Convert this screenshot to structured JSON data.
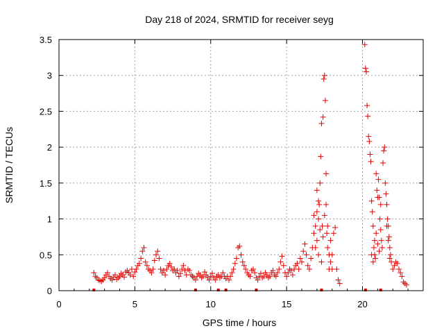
{
  "chart_data": {
    "type": "scatter",
    "title": "Day 218 of 2024, SRMTID for receiver seyg",
    "xlabel": "GPS time / hours",
    "ylabel": "SRMTID / TECUs",
    "xlim": [
      0,
      24
    ],
    "ylim": [
      0,
      3.5
    ],
    "xticks": [
      0,
      5,
      10,
      15,
      20
    ],
    "xtick_labels": [
      "0",
      "5",
      "10",
      "15",
      "20"
    ],
    "yticks": [
      0,
      0.5,
      1,
      1.5,
      2,
      2.5,
      3,
      3.5
    ],
    "ytick_labels": [
      "0",
      "0.5",
      "1",
      "1.5",
      "2",
      "2.5",
      "3",
      "3.5"
    ],
    "grid": true,
    "series_name": "SRMTID",
    "marker": "plus",
    "color": "#e00000",
    "points": [
      [
        2.3,
        0.25
      ],
      [
        2.4,
        0.2
      ],
      [
        2.5,
        0.18
      ],
      [
        2.6,
        0.15
      ],
      [
        2.7,
        0.14
      ],
      [
        2.8,
        0.13
      ],
      [
        2.9,
        0.15
      ],
      [
        3.0,
        0.18
      ],
      [
        3.1,
        0.22
      ],
      [
        3.2,
        0.25
      ],
      [
        3.3,
        0.2
      ],
      [
        3.4,
        0.17
      ],
      [
        3.5,
        0.15
      ],
      [
        3.6,
        0.19
      ],
      [
        3.7,
        0.22
      ],
      [
        3.8,
        0.16
      ],
      [
        3.9,
        0.18
      ],
      [
        4.0,
        0.2
      ],
      [
        4.1,
        0.24
      ],
      [
        4.2,
        0.22
      ],
      [
        4.3,
        0.19
      ],
      [
        4.4,
        0.26
      ],
      [
        4.5,
        0.28
      ],
      [
        4.6,
        0.25
      ],
      [
        4.7,
        0.22
      ],
      [
        4.8,
        0.3
      ],
      [
        4.9,
        0.2
      ],
      [
        5.0,
        0.26
      ],
      [
        5.1,
        0.3
      ],
      [
        5.2,
        0.35
      ],
      [
        5.3,
        0.38
      ],
      [
        5.4,
        0.45
      ],
      [
        5.5,
        0.55
      ],
      [
        5.6,
        0.6
      ],
      [
        5.7,
        0.4
      ],
      [
        5.8,
        0.35
      ],
      [
        5.9,
        0.3
      ],
      [
        6.0,
        0.28
      ],
      [
        6.1,
        0.25
      ],
      [
        6.2,
        0.3
      ],
      [
        6.3,
        0.42
      ],
      [
        6.4,
        0.5
      ],
      [
        6.5,
        0.55
      ],
      [
        6.6,
        0.45
      ],
      [
        6.7,
        0.3
      ],
      [
        6.8,
        0.25
      ],
      [
        6.9,
        0.28
      ],
      [
        7.0,
        0.22
      ],
      [
        7.1,
        0.3
      ],
      [
        7.2,
        0.35
      ],
      [
        7.3,
        0.38
      ],
      [
        7.4,
        0.33
      ],
      [
        7.5,
        0.28
      ],
      [
        7.6,
        0.3
      ],
      [
        7.7,
        0.25
      ],
      [
        7.8,
        0.28
      ],
      [
        7.9,
        0.2
      ],
      [
        8.0,
        0.24
      ],
      [
        8.1,
        0.3
      ],
      [
        8.2,
        0.35
      ],
      [
        8.3,
        0.28
      ],
      [
        8.4,
        0.22
      ],
      [
        8.5,
        0.3
      ],
      [
        8.6,
        0.28
      ],
      [
        8.7,
        0.22
      ],
      [
        8.8,
        0.2
      ],
      [
        8.9,
        0.18
      ],
      [
        9.0,
        0.15
      ],
      [
        9.1,
        0.2
      ],
      [
        9.2,
        0.24
      ],
      [
        9.3,
        0.22
      ],
      [
        9.4,
        0.18
      ],
      [
        9.5,
        0.2
      ],
      [
        9.6,
        0.26
      ],
      [
        9.7,
        0.22
      ],
      [
        9.8,
        0.18
      ],
      [
        9.9,
        0.15
      ],
      [
        10.0,
        0.2
      ],
      [
        10.1,
        0.24
      ],
      [
        10.2,
        0.18
      ],
      [
        10.3,
        0.15
      ],
      [
        10.4,
        0.2
      ],
      [
        10.5,
        0.22
      ],
      [
        10.6,
        0.18
      ],
      [
        10.7,
        0.2
      ],
      [
        10.8,
        0.25
      ],
      [
        10.9,
        0.2
      ],
      [
        11.0,
        0.17
      ],
      [
        11.1,
        0.2
      ],
      [
        11.2,
        0.15
      ],
      [
        11.3,
        0.2
      ],
      [
        11.4,
        0.25
      ],
      [
        11.5,
        0.3
      ],
      [
        11.6,
        0.38
      ],
      [
        11.7,
        0.45
      ],
      [
        11.8,
        0.6
      ],
      [
        11.9,
        0.62
      ],
      [
        12.0,
        0.5
      ],
      [
        12.1,
        0.4
      ],
      [
        12.2,
        0.35
      ],
      [
        12.3,
        0.3
      ],
      [
        12.4,
        0.25
      ],
      [
        12.5,
        0.22
      ],
      [
        12.6,
        0.2
      ],
      [
        12.7,
        0.28
      ],
      [
        12.8,
        0.3
      ],
      [
        12.9,
        0.25
      ],
      [
        13.0,
        0.18
      ],
      [
        13.1,
        0.15
      ],
      [
        13.2,
        0.2
      ],
      [
        13.3,
        0.24
      ],
      [
        13.4,
        0.18
      ],
      [
        13.5,
        0.2
      ],
      [
        13.6,
        0.25
      ],
      [
        13.7,
        0.22
      ],
      [
        13.8,
        0.18
      ],
      [
        13.9,
        0.2
      ],
      [
        14.0,
        0.25
      ],
      [
        14.1,
        0.28
      ],
      [
        14.2,
        0.22
      ],
      [
        14.3,
        0.2
      ],
      [
        14.4,
        0.25
      ],
      [
        14.5,
        0.3
      ],
      [
        14.6,
        0.4
      ],
      [
        14.7,
        0.48
      ],
      [
        14.8,
        0.35
      ],
      [
        14.9,
        0.25
      ],
      [
        15.0,
        0.2
      ],
      [
        15.1,
        0.25
      ],
      [
        15.2,
        0.3
      ],
      [
        15.3,
        0.28
      ],
      [
        15.4,
        0.22
      ],
      [
        15.5,
        0.3
      ],
      [
        15.6,
        0.35
      ],
      [
        15.7,
        0.38
      ],
      [
        15.8,
        0.3
      ],
      [
        15.9,
        0.45
      ],
      [
        16.0,
        0.4
      ],
      [
        16.1,
        0.55
      ],
      [
        16.2,
        0.65
      ],
      [
        16.3,
        0.5
      ],
      [
        16.4,
        0.35
      ],
      [
        16.5,
        0.3
      ],
      [
        16.6,
        0.45
      ],
      [
        16.7,
        0.6
      ],
      [
        16.8,
        0.8
      ],
      [
        16.9,
        0.9
      ],
      [
        17.0,
        1.1
      ],
      [
        17.1,
        1.25
      ],
      [
        17.15,
        1.2
      ],
      [
        17.2,
        1.5
      ],
      [
        17.25,
        1.87
      ],
      [
        17.3,
        2.33
      ],
      [
        17.35,
        0.9
      ],
      [
        17.4,
        2.42
      ],
      [
        17.45,
        2.95
      ],
      [
        17.5,
        3.0
      ],
      [
        17.55,
        2.65
      ],
      [
        17.6,
        1.63
      ],
      [
        17.65,
        0.8
      ],
      [
        17.7,
        0.6
      ],
      [
        17.8,
        0.5
      ],
      [
        17.9,
        0.4
      ],
      [
        18.0,
        0.3
      ],
      [
        18.1,
        0.8
      ],
      [
        18.2,
        0.88
      ],
      [
        18.3,
        0.3
      ],
      [
        18.4,
        0.15
      ],
      [
        18.5,
        0.1
      ],
      [
        16.9,
        0.6
      ],
      [
        17.0,
        0.7
      ],
      [
        17.1,
        0.5
      ],
      [
        17.2,
        0.85
      ],
      [
        17.3,
        0.4
      ],
      [
        17.6,
        1.2
      ],
      [
        17.7,
        0.9
      ],
      [
        16.8,
        1.05
      ],
      [
        17.0,
        1.4
      ],
      [
        17.1,
        1.0
      ],
      [
        17.9,
        0.7
      ],
      [
        18.0,
        0.5
      ],
      [
        17.8,
        0.3
      ],
      [
        17.5,
        1.05
      ],
      [
        17.4,
        0.75
      ],
      [
        20.15,
        3.43
      ],
      [
        20.2,
        3.1
      ],
      [
        20.25,
        3.05
      ],
      [
        20.3,
        2.58
      ],
      [
        20.35,
        2.43
      ],
      [
        20.4,
        2.15
      ],
      [
        20.45,
        2.08
      ],
      [
        20.5,
        1.9
      ],
      [
        20.55,
        1.8
      ],
      [
        20.6,
        1.25
      ],
      [
        20.65,
        1.1
      ],
      [
        20.7,
        0.9
      ],
      [
        20.75,
        0.6
      ],
      [
        20.8,
        0.5
      ],
      [
        20.85,
        0.45
      ],
      [
        20.9,
        1.63
      ],
      [
        20.95,
        1.4
      ],
      [
        21.0,
        1.3
      ],
      [
        21.05,
        1.55
      ],
      [
        21.1,
        1.3
      ],
      [
        21.15,
        1.0
      ],
      [
        21.2,
        0.85
      ],
      [
        21.25,
        0.7
      ],
      [
        21.3,
        0.6
      ],
      [
        21.35,
        1.78
      ],
      [
        21.4,
        1.95
      ],
      [
        21.45,
        2.0
      ],
      [
        21.5,
        1.5
      ],
      [
        21.55,
        1.35
      ],
      [
        21.6,
        1.2
      ],
      [
        21.65,
        1.0
      ],
      [
        21.7,
        0.9
      ],
      [
        21.75,
        0.75
      ],
      [
        21.8,
        0.6
      ],
      [
        21.85,
        0.5
      ],
      [
        21.9,
        0.4
      ],
      [
        22.0,
        0.3
      ],
      [
        22.1,
        0.35
      ],
      [
        22.2,
        0.4
      ],
      [
        22.3,
        0.38
      ],
      [
        22.4,
        0.3
      ],
      [
        22.5,
        0.25
      ],
      [
        22.6,
        0.2
      ],
      [
        22.7,
        0.12
      ],
      [
        22.8,
        0.1
      ],
      [
        22.9,
        0.08
      ],
      [
        20.6,
        0.5
      ],
      [
        20.7,
        0.4
      ],
      [
        20.8,
        0.7
      ],
      [
        20.9,
        0.8
      ],
      [
        21.0,
        0.65
      ],
      [
        21.1,
        0.55
      ],
      [
        21.2,
        1.2
      ],
      [
        21.6,
        0.9
      ],
      [
        21.7,
        0.7
      ],
      [
        21.8,
        0.45
      ]
    ],
    "baseline_markers": [
      2.3,
      9.0,
      10.5,
      11.0,
      13.0,
      17.3,
      20.2,
      21.2
    ]
  }
}
